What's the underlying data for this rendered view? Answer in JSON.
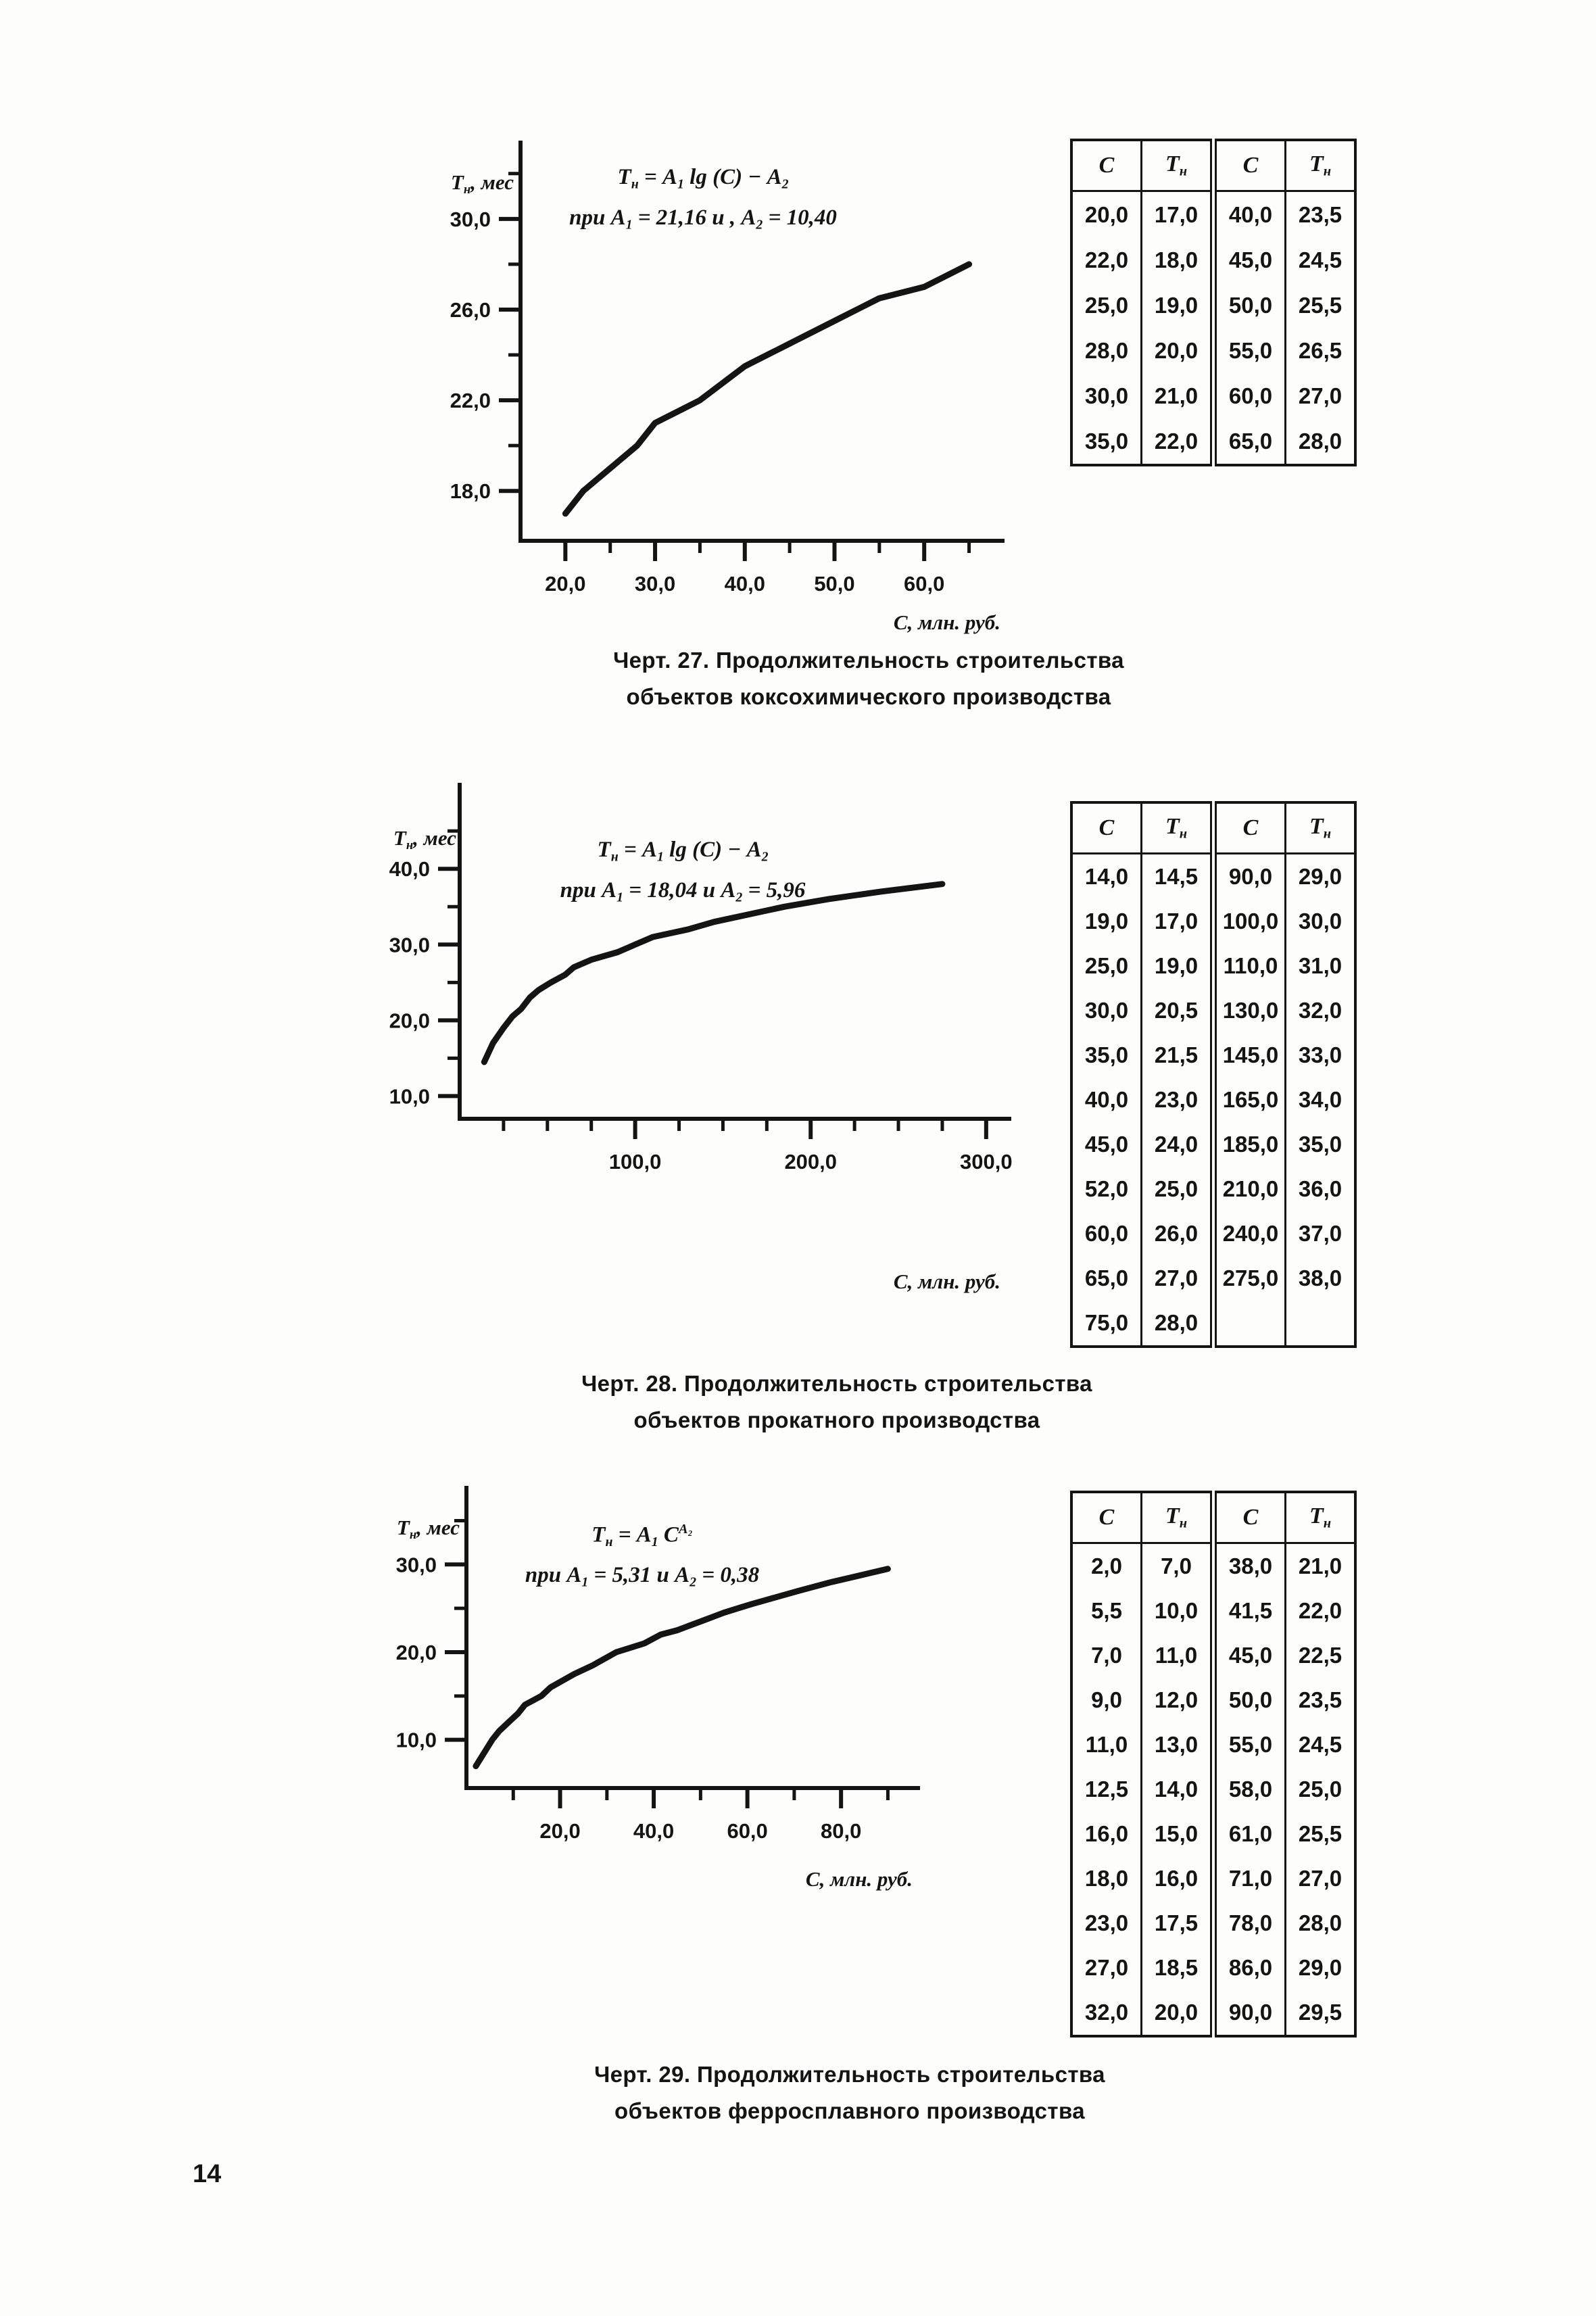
{
  "page": {
    "number": "14",
    "paper_color": "#fdfdfb",
    "ink_color": "#141414"
  },
  "figures": [
    {
      "number": "27",
      "y_label_parts": [
        {
          "t": "Т"
        },
        {
          "t": "н",
          "s": "sub"
        },
        {
          "t": ", мес"
        }
      ],
      "x_label": "С, млн. руб.",
      "formula": {
        "line1": [
          {
            "t": "Т"
          },
          {
            "t": "н",
            "s": "sub"
          },
          {
            "t": " = "
          },
          {
            "t": "А"
          },
          {
            "t": "1",
            "s": "sub"
          },
          {
            "t": " lg (С) − "
          },
          {
            "t": "А"
          },
          {
            "t": "2",
            "s": "sub"
          }
        ],
        "line2": [
          {
            "t": "при "
          },
          {
            "t": "А"
          },
          {
            "t": "1",
            "s": "sub"
          },
          {
            "t": " = 21,16 и , "
          },
          {
            "t": "А"
          },
          {
            "t": "2",
            "s": "sub"
          },
          {
            "t": " = 10,40"
          }
        ]
      },
      "caption_line1": "Черт. 27. Продолжительность строительства",
      "caption_line2": "объектов коксохимического производства",
      "table": {
        "header_parts": [
          [
            {
              "t": "С"
            }
          ],
          [
            {
              "t": "Т"
            },
            {
              "t": "н",
              "s": "sub"
            }
          ],
          [
            {
              "t": "С"
            }
          ],
          [
            {
              "t": "Т"
            },
            {
              "t": "н",
              "s": "sub"
            }
          ]
        ],
        "rows": [
          [
            "20,0",
            "17,0",
            "40,0",
            "23,5"
          ],
          [
            "22,0",
            "18,0",
            "45,0",
            "24,5"
          ],
          [
            "25,0",
            "19,0",
            "50,0",
            "25,5"
          ],
          [
            "28,0",
            "20,0",
            "55,0",
            "26,5"
          ],
          [
            "30,0",
            "21,0",
            "60,0",
            "27,0"
          ],
          [
            "35,0",
            "22,0",
            "65,0",
            "28,0"
          ]
        ]
      }
    },
    {
      "number": "28",
      "y_label_parts": [
        {
          "t": "Т"
        },
        {
          "t": "н",
          "s": "sub"
        },
        {
          "t": ", мес"
        }
      ],
      "x_label": "С, млн. руб.",
      "formula": {
        "line1": [
          {
            "t": "Т"
          },
          {
            "t": "н",
            "s": "sub"
          },
          {
            "t": " = "
          },
          {
            "t": "А"
          },
          {
            "t": "1",
            "s": "sub"
          },
          {
            "t": " lg (С) − "
          },
          {
            "t": "А"
          },
          {
            "t": "2",
            "s": "sub"
          }
        ],
        "line2": [
          {
            "t": "при "
          },
          {
            "t": "А"
          },
          {
            "t": "1",
            "s": "sub"
          },
          {
            "t": " = 18,04 и "
          },
          {
            "t": "А"
          },
          {
            "t": "2",
            "s": "sub"
          },
          {
            "t": " = 5,96"
          }
        ]
      },
      "caption_line1": "Черт. 28. Продолжительность строительства",
      "caption_line2": "объектов прокатного производства",
      "table": {
        "header_parts": [
          [
            {
              "t": "С"
            }
          ],
          [
            {
              "t": "Т"
            },
            {
              "t": "н",
              "s": "sub"
            }
          ],
          [
            {
              "t": "С"
            }
          ],
          [
            {
              "t": "Т"
            },
            {
              "t": "н",
              "s": "sub"
            }
          ]
        ],
        "rows": [
          [
            "14,0",
            "14,5",
            "90,0",
            "29,0"
          ],
          [
            "19,0",
            "17,0",
            "100,0",
            "30,0"
          ],
          [
            "25,0",
            "19,0",
            "110,0",
            "31,0"
          ],
          [
            "30,0",
            "20,5",
            "130,0",
            "32,0"
          ],
          [
            "35,0",
            "21,5",
            "145,0",
            "33,0"
          ],
          [
            "40,0",
            "23,0",
            "165,0",
            "34,0"
          ],
          [
            "45,0",
            "24,0",
            "185,0",
            "35,0"
          ],
          [
            "52,0",
            "25,0",
            "210,0",
            "36,0"
          ],
          [
            "60,0",
            "26,0",
            "240,0",
            "37,0"
          ],
          [
            "65,0",
            "27,0",
            "275,0",
            "38,0"
          ],
          [
            "75,0",
            "28,0",
            "",
            ""
          ]
        ]
      }
    },
    {
      "number": "29",
      "y_label_parts": [
        {
          "t": "Т"
        },
        {
          "t": "н",
          "s": "sub"
        },
        {
          "t": ", мес"
        }
      ],
      "x_label": "С, млн. руб.",
      "formula": {
        "line1": [
          {
            "t": "Т"
          },
          {
            "t": "н",
            "s": "sub"
          },
          {
            "t": " = "
          },
          {
            "t": "А"
          },
          {
            "t": "1",
            "s": "sub"
          },
          {
            "t": " С"
          },
          {
            "t": "А₂",
            "s": "sup"
          }
        ],
        "line2": [
          {
            "t": "при "
          },
          {
            "t": "А"
          },
          {
            "t": "1",
            "s": "sub"
          },
          {
            "t": " = 5,31 и "
          },
          {
            "t": "А"
          },
          {
            "t": "2",
            "s": "sub"
          },
          {
            "t": " = 0,38"
          }
        ]
      },
      "caption_line1": "Черт. 29. Продолжительность строительства",
      "caption_line2": "объектов ферросплавного производства",
      "table": {
        "header_parts": [
          [
            {
              "t": "С"
            }
          ],
          [
            {
              "t": "Т"
            },
            {
              "t": "н",
              "s": "sub"
            }
          ],
          [
            {
              "t": "С"
            }
          ],
          [
            {
              "t": "Т"
            },
            {
              "t": "н",
              "s": "sub"
            }
          ]
        ],
        "rows": [
          [
            "2,0",
            "7,0",
            "38,0",
            "21,0"
          ],
          [
            "5,5",
            "10,0",
            "41,5",
            "22,0"
          ],
          [
            "7,0",
            "11,0",
            "45,0",
            "22,5"
          ],
          [
            "9,0",
            "12,0",
            "50,0",
            "23,5"
          ],
          [
            "11,0",
            "13,0",
            "55,0",
            "24,5"
          ],
          [
            "12,5",
            "14,0",
            "58,0",
            "25,0"
          ],
          [
            "16,0",
            "15,0",
            "61,0",
            "25,5"
          ],
          [
            "18,0",
            "16,0",
            "71,0",
            "27,0"
          ],
          [
            "23,0",
            "17,5",
            "78,0",
            "28,0"
          ],
          [
            "27,0",
            "18,5",
            "86,0",
            "29,0"
          ],
          [
            "32,0",
            "20,0",
            "90,0",
            "29,5"
          ]
        ]
      }
    }
  ],
  "chart_data": [
    {
      "type": "line",
      "title": "Черт. 27. Продолжительность строительства объектов коксохимического производства",
      "formula": "Тн = А1 lg (С) − А2, при А1 = 21,16 и А2 = 10,40",
      "xlabel": "С, млн. руб.",
      "ylabel": "Тн, мес",
      "x": [
        20,
        22,
        25,
        28,
        30,
        35,
        40,
        45,
        50,
        55,
        60,
        65
      ],
      "y": [
        17.0,
        18.0,
        19.0,
        20.0,
        21.0,
        22.0,
        23.5,
        24.5,
        25.5,
        26.5,
        27.0,
        28.0
      ],
      "xlim": [
        15,
        68.5
      ],
      "ylim": [
        15.8,
        32.5
      ],
      "x_major_ticks": [
        20,
        30,
        40,
        50,
        60
      ],
      "x_minor_ticks": [
        25,
        35,
        45,
        55,
        65
      ],
      "y_major_ticks": [
        18,
        22,
        26,
        30
      ],
      "y_minor_ticks": [
        20,
        24,
        28,
        32
      ],
      "grid": false,
      "legend": false
    },
    {
      "type": "line",
      "title": "Черт. 28. Продолжительность строительства объектов прокатного производства",
      "formula": "Тн = А1 lg (С) − А2, при А1 = 18,04 и А2 = 5,96",
      "xlabel": "С, млн. руб.",
      "ylabel": "Тн, мес",
      "x": [
        14,
        19,
        25,
        30,
        35,
        40,
        45,
        52,
        60,
        65,
        75,
        90,
        100,
        110,
        130,
        145,
        165,
        185,
        210,
        240,
        275
      ],
      "y": [
        14.5,
        17.0,
        19.0,
        20.5,
        21.5,
        23.0,
        24.0,
        25.0,
        26.0,
        27.0,
        28.0,
        29.0,
        30.0,
        31.0,
        32.0,
        33.0,
        34.0,
        35.0,
        36.0,
        37.0,
        38.0
      ],
      "xlim": [
        0,
        312
      ],
      "ylim": [
        7,
        48.5
      ],
      "x_major_ticks": [
        100,
        200,
        300
      ],
      "x_minor_ticks": [
        25,
        50,
        75,
        125,
        150,
        175,
        225,
        250,
        275
      ],
      "y_major_ticks": [
        10,
        20,
        30,
        40
      ],
      "y_minor_ticks": [
        15,
        25,
        35,
        45
      ],
      "grid": false,
      "legend": false
    },
    {
      "type": "line",
      "title": "Черт. 29. Продолжительность строительства объектов ферросплавного производства",
      "formula": "Тн = А1·С^А2, при А1 = 5,31 и А2 = 0,38",
      "xlabel": "С, млн. руб.",
      "ylabel": "Тн, мес",
      "x": [
        2,
        5.5,
        7,
        9,
        11,
        12.5,
        16,
        18,
        23,
        27,
        32,
        38,
        41.5,
        45,
        50,
        55,
        58,
        61,
        71,
        78,
        86,
        90
      ],
      "y": [
        7.0,
        10.0,
        11.0,
        12.0,
        13.0,
        14.0,
        15.0,
        16.0,
        17.5,
        18.5,
        20.0,
        21.0,
        22.0,
        22.5,
        23.5,
        24.5,
        25.0,
        25.5,
        27.0,
        28.0,
        29.0,
        29.5
      ],
      "xlim": [
        0,
        96
      ],
      "ylim": [
        4.5,
        36.5
      ],
      "x_major_ticks": [
        20,
        40,
        60,
        80
      ],
      "x_minor_ticks": [
        10,
        30,
        50,
        70,
        90
      ],
      "y_major_ticks": [
        10,
        20,
        30
      ],
      "y_minor_ticks": [
        15,
        25,
        35
      ],
      "grid": false,
      "legend": false
    }
  ]
}
